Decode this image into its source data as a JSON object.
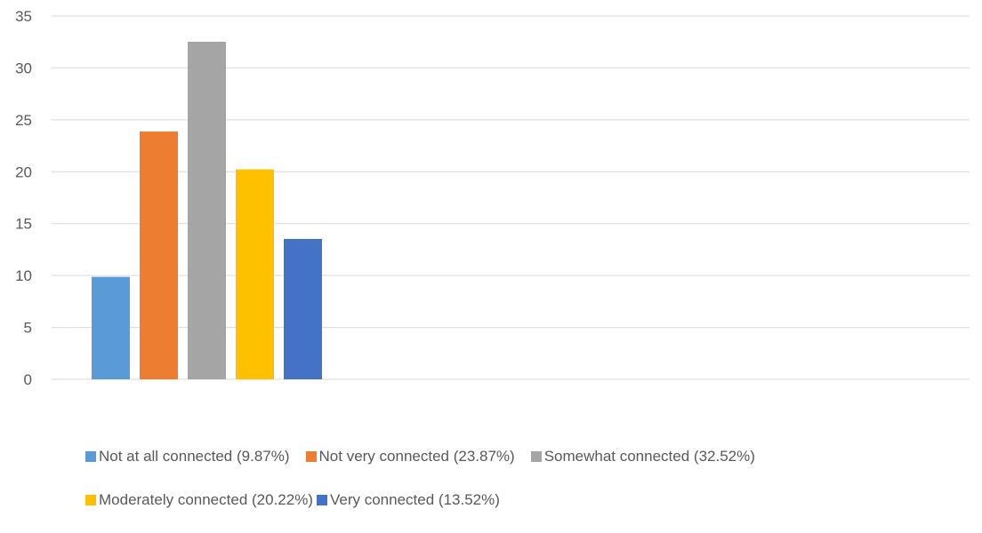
{
  "chart_data": {
    "type": "bar",
    "title": "",
    "xlabel": "",
    "ylabel": "",
    "ylim": [
      0,
      35
    ],
    "yticks": [
      0,
      5,
      10,
      15,
      20,
      25,
      30,
      35
    ],
    "grid": true,
    "legend_position": "bottom",
    "series": [
      {
        "name": "Not at all connected (9.87%)",
        "value": 9.87,
        "color": "#5b9bd5"
      },
      {
        "name": "Not very connected (23.87%)",
        "value": 23.87,
        "color": "#ed7d31"
      },
      {
        "name": "Somewhat connected (32.52%)",
        "value": 32.52,
        "color": "#a5a5a5"
      },
      {
        "name": "Moderately connected (20.22%)",
        "value": 20.22,
        "color": "#ffc000"
      },
      {
        "name": "Very connected (13.52%)",
        "value": 13.52,
        "color": "#4472c4"
      }
    ]
  }
}
